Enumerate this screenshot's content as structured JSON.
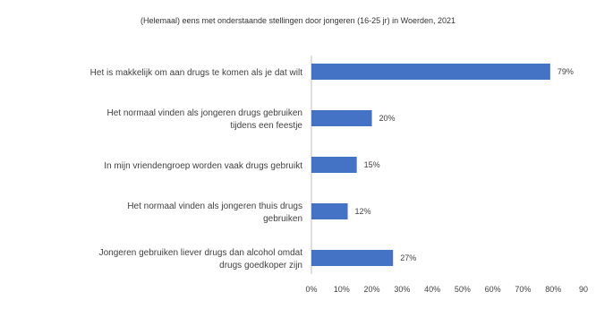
{
  "chart_data": {
    "type": "bar",
    "orientation": "horizontal",
    "title": "(Helemaal) eens met onderstaande stellingen door jongeren (16-25 jr) in Woerden, 2021",
    "categories": [
      "Het is makkelijk om aan drugs te komen als je dat wilt",
      "Het normaal vinden als jongeren drugs gebruiken tijdens een feestje",
      "In mijn vriendengroep worden vaak drugs gebruikt",
      "Het normaal vinden als jongeren thuis drugs gebruiken",
      "Jongeren gebruiken liever drugs dan alcohol omdat drugs goedkoper zijn"
    ],
    "category_lines": [
      [
        "Het is makkelijk om aan drugs te komen als je dat wilt"
      ],
      [
        "Het normaal vinden als jongeren drugs gebruiken",
        "tijdens een feestje"
      ],
      [
        "In mijn vriendengroep worden vaak drugs gebruikt"
      ],
      [
        "Het normaal vinden als jongeren thuis drugs",
        "gebruiken"
      ],
      [
        "Jongeren gebruiken liever drugs dan alcohol omdat",
        "drugs goedkoper zijn"
      ]
    ],
    "values": [
      79,
      20,
      15,
      12,
      27
    ],
    "data_labels": [
      "79%",
      "20%",
      "15%",
      "12%",
      "27%"
    ],
    "xlim": [
      0,
      90
    ],
    "x_ticks": [
      "0%",
      "10%",
      "20%",
      "30%",
      "40%",
      "50%",
      "60%",
      "70%",
      "80%",
      "90"
    ],
    "xlabel": "",
    "ylabel": "",
    "grid": false,
    "legend": "none",
    "bar_color": "#4472c4",
    "text_color": "#404040"
  }
}
